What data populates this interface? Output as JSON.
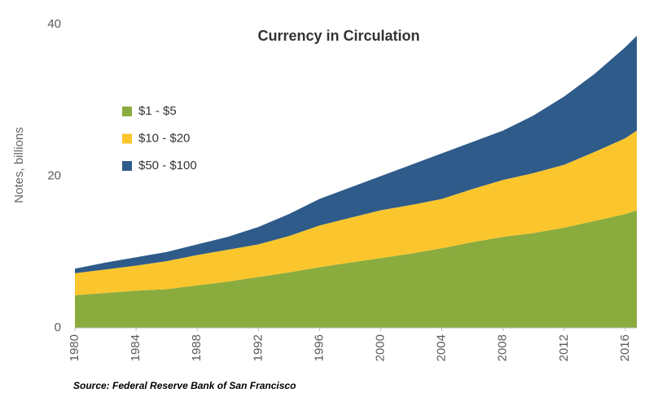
{
  "chart_data": {
    "type": "stacked-area",
    "title": "Currency in Circulation",
    "y_label": "Notes, billions",
    "source": "Source: Federal Reserve Bank of San Francisco",
    "x": [
      1980,
      1982,
      1984,
      1986,
      1988,
      1990,
      1992,
      1994,
      1996,
      1998,
      2000,
      2002,
      2004,
      2006,
      2008,
      2010,
      2012,
      2014,
      2016,
      2016.75
    ],
    "series": [
      {
        "name": "$1 - $5",
        "color": "#8aac3e",
        "values": [
          4.3,
          4.6,
          4.9,
          5.1,
          5.6,
          6.1,
          6.7,
          7.3,
          8.0,
          8.6,
          9.2,
          9.8,
          10.5,
          11.3,
          12.0,
          12.5,
          13.2,
          14.1,
          15.0,
          15.5
        ]
      },
      {
        "name": "$10 - $20",
        "color": "#fbc62d",
        "values": [
          2.9,
          3.1,
          3.3,
          3.7,
          4.0,
          4.2,
          4.3,
          4.8,
          5.5,
          5.9,
          6.3,
          6.4,
          6.5,
          7.0,
          7.5,
          7.9,
          8.3,
          9.1,
          10.0,
          10.5
        ]
      },
      {
        "name": "$50 - $100",
        "color": "#2e5b8a",
        "values": [
          0.6,
          0.9,
          1.1,
          1.2,
          1.4,
          1.7,
          2.3,
          2.9,
          3.5,
          4.0,
          4.5,
          5.3,
          6.0,
          6.2,
          6.5,
          7.6,
          9.0,
          10.3,
          12.0,
          12.5
        ]
      }
    ],
    "xlim": [
      1980,
      2016.75
    ],
    "xticks": [
      1980,
      1984,
      1988,
      1992,
      1996,
      2000,
      2004,
      2008,
      2012,
      2016
    ],
    "ylim": [
      0,
      40
    ],
    "yticks": [
      0,
      20,
      40
    ],
    "grid": false
  }
}
